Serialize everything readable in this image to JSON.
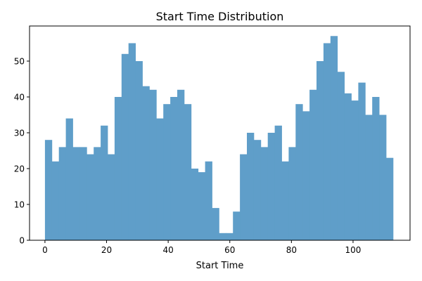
{
  "chart_data": {
    "type": "bar",
    "title": "Start Time Distribution",
    "xlabel": "Start Time",
    "ylabel": "",
    "bin_width": 2.26,
    "bin_start": 0,
    "values": [
      28,
      22,
      26,
      34,
      26,
      26,
      24,
      26,
      32,
      24,
      40,
      52,
      55,
      50,
      43,
      42,
      34,
      38,
      40,
      42,
      38,
      20,
      19,
      22,
      9,
      2,
      2,
      8,
      24,
      30,
      28,
      26,
      30,
      32,
      22,
      26,
      38,
      36,
      42,
      50,
      55,
      57,
      47,
      41,
      39,
      44,
      35,
      40,
      35,
      23
    ],
    "xlim": [
      -5,
      118.5
    ],
    "ylim": [
      0,
      59.8
    ],
    "xticks": [
      0,
      20,
      40,
      60,
      80,
      100
    ],
    "yticks": [
      0,
      10,
      20,
      30,
      40,
      50
    ],
    "bar_color": "#5f9ec9",
    "grid": false
  }
}
